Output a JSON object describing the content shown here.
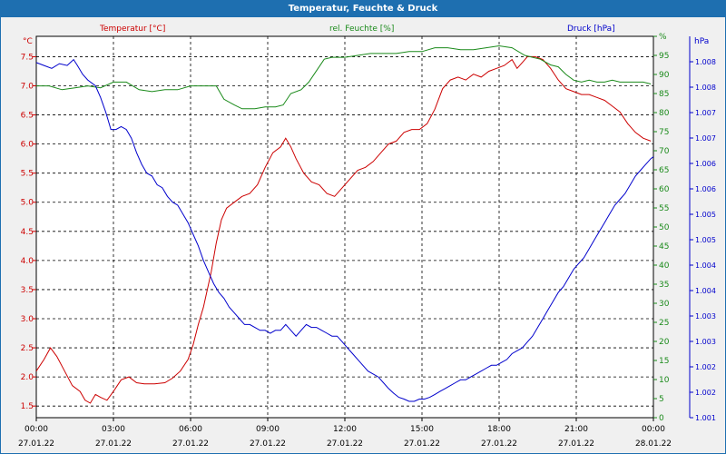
{
  "window_title": "Temperatur, Feuchte & Druck",
  "colors": {
    "temperature": "#cc0000",
    "humidity": "#1a8a1a",
    "pressure": "#0000cc",
    "title_bar": "#1e6fb0"
  },
  "chart_data": {
    "type": "line",
    "title": "Temperatur, Feuchte & Druck",
    "grid": true,
    "x_ticks": [
      {
        "time": "00:00",
        "date": "27.01.22"
      },
      {
        "time": "03:00",
        "date": "27.01.22"
      },
      {
        "time": "06:00",
        "date": "27.01.22"
      },
      {
        "time": "09:00",
        "date": "27.01.22"
      },
      {
        "time": "12:00",
        "date": "27.01.22"
      },
      {
        "time": "15:00",
        "date": "27.01.22"
      },
      {
        "time": "18:00",
        "date": "27.01.22"
      },
      {
        "time": "21:00",
        "date": "27.01.22"
      },
      {
        "time": "00:00",
        "date": "28.01.22"
      }
    ],
    "x_range_hours": [
      0,
      24
    ],
    "axes": {
      "temperature": {
        "unit_label": "°C",
        "series_label": "Temperatur [°C]",
        "range": [
          1.3,
          7.85
        ],
        "ticks": [
          "1.5",
          "2.0",
          "2.5",
          "3.0",
          "3.5",
          "4.0",
          "4.5",
          "5.0",
          "5.5",
          "6.0",
          "6.5",
          "7.0",
          "7.5"
        ]
      },
      "humidity": {
        "unit_label": "%",
        "series_label": "rel. Feuchte [%]",
        "range": [
          0,
          100
        ],
        "ticks": [
          "0",
          "5",
          "10",
          "15",
          "20",
          "25",
          "30",
          "35",
          "40",
          "45",
          "50",
          "55",
          "60",
          "65",
          "70",
          "75",
          "80",
          "85",
          "90",
          "95",
          "%"
        ]
      },
      "pressure": {
        "unit_label": "hPa",
        "series_label": "Druck [hPa]",
        "ticks": [
          "1.001",
          "1.002",
          "1.002",
          "1.003",
          "1.003",
          "1.004",
          "1.004",
          "1.005",
          "1.005",
          "1.006",
          "1.006",
          "1.007",
          "1.007",
          "1.008",
          "1.008"
        ]
      }
    },
    "series": [
      {
        "name": "Temperatur [°C]",
        "axis": "temperature",
        "points": [
          [
            0,
            2.1
          ],
          [
            0.3,
            2.3
          ],
          [
            0.55,
            2.5
          ],
          [
            0.8,
            2.35
          ],
          [
            1.1,
            2.1
          ],
          [
            1.4,
            1.85
          ],
          [
            1.7,
            1.75
          ],
          [
            1.9,
            1.6
          ],
          [
            2.1,
            1.55
          ],
          [
            2.3,
            1.7
          ],
          [
            2.5,
            1.65
          ],
          [
            2.75,
            1.6
          ],
          [
            3.0,
            1.75
          ],
          [
            3.3,
            1.95
          ],
          [
            3.6,
            2.0
          ],
          [
            3.9,
            1.9
          ],
          [
            4.2,
            1.88
          ],
          [
            4.6,
            1.88
          ],
          [
            5.0,
            1.9
          ],
          [
            5.3,
            1.98
          ],
          [
            5.6,
            2.1
          ],
          [
            5.9,
            2.3
          ],
          [
            6.1,
            2.55
          ],
          [
            6.3,
            2.9
          ],
          [
            6.5,
            3.2
          ],
          [
            6.8,
            3.8
          ],
          [
            7.0,
            4.3
          ],
          [
            7.2,
            4.7
          ],
          [
            7.4,
            4.9
          ],
          [
            7.7,
            5.0
          ],
          [
            8.0,
            5.1
          ],
          [
            8.3,
            5.15
          ],
          [
            8.6,
            5.3
          ],
          [
            8.9,
            5.6
          ],
          [
            9.2,
            5.85
          ],
          [
            9.5,
            5.95
          ],
          [
            9.7,
            6.1
          ],
          [
            9.9,
            5.95
          ],
          [
            10.1,
            5.75
          ],
          [
            10.4,
            5.5
          ],
          [
            10.7,
            5.35
          ],
          [
            11.0,
            5.3
          ],
          [
            11.3,
            5.15
          ],
          [
            11.6,
            5.1
          ],
          [
            11.9,
            5.25
          ],
          [
            12.2,
            5.4
          ],
          [
            12.5,
            5.55
          ],
          [
            12.8,
            5.6
          ],
          [
            13.1,
            5.7
          ],
          [
            13.4,
            5.85
          ],
          [
            13.7,
            6.0
          ],
          [
            14.0,
            6.05
          ],
          [
            14.3,
            6.2
          ],
          [
            14.6,
            6.25
          ],
          [
            14.9,
            6.25
          ],
          [
            15.2,
            6.35
          ],
          [
            15.5,
            6.6
          ],
          [
            15.8,
            6.95
          ],
          [
            16.1,
            7.1
          ],
          [
            16.4,
            7.15
          ],
          [
            16.7,
            7.1
          ],
          [
            17.0,
            7.2
          ],
          [
            17.3,
            7.15
          ],
          [
            17.6,
            7.25
          ],
          [
            17.9,
            7.3
          ],
          [
            18.2,
            7.35
          ],
          [
            18.5,
            7.45
          ],
          [
            18.7,
            7.3
          ],
          [
            18.9,
            7.4
          ],
          [
            19.1,
            7.5
          ],
          [
            19.4,
            7.5
          ],
          [
            19.7,
            7.45
          ],
          [
            20.0,
            7.3
          ],
          [
            20.3,
            7.1
          ],
          [
            20.6,
            6.95
          ],
          [
            20.9,
            6.9
          ],
          [
            21.2,
            6.85
          ],
          [
            21.5,
            6.85
          ],
          [
            21.8,
            6.8
          ],
          [
            22.1,
            6.75
          ],
          [
            22.4,
            6.65
          ],
          [
            22.7,
            6.55
          ],
          [
            23.0,
            6.35
          ],
          [
            23.3,
            6.2
          ],
          [
            23.6,
            6.1
          ],
          [
            23.9,
            6.05
          ]
        ]
      },
      {
        "name": "rel. Feuchte [%]",
        "axis": "humidity",
        "points": [
          [
            0,
            87
          ],
          [
            0.5,
            87
          ],
          [
            1.0,
            86
          ],
          [
            1.5,
            86.5
          ],
          [
            2.0,
            87
          ],
          [
            2.5,
            86.5
          ],
          [
            3.0,
            88
          ],
          [
            3.5,
            88
          ],
          [
            4.0,
            86
          ],
          [
            4.5,
            85.5
          ],
          [
            5.0,
            86
          ],
          [
            5.5,
            86
          ],
          [
            6.0,
            87
          ],
          [
            6.5,
            87
          ],
          [
            7.0,
            87
          ],
          [
            7.3,
            83.5
          ],
          [
            7.7,
            82
          ],
          [
            8.0,
            81
          ],
          [
            8.5,
            81
          ],
          [
            8.9,
            81.5
          ],
          [
            9.3,
            81.5
          ],
          [
            9.6,
            82
          ],
          [
            9.9,
            85
          ],
          [
            10.3,
            86
          ],
          [
            10.6,
            88
          ],
          [
            10.9,
            91
          ],
          [
            11.2,
            94
          ],
          [
            11.5,
            94.5
          ],
          [
            12.0,
            94.5
          ],
          [
            12.5,
            95
          ],
          [
            13.0,
            95.5
          ],
          [
            13.5,
            95.5
          ],
          [
            14.0,
            95.5
          ],
          [
            14.5,
            96
          ],
          [
            15.0,
            96
          ],
          [
            15.5,
            97
          ],
          [
            16.0,
            97
          ],
          [
            16.5,
            96.5
          ],
          [
            17.0,
            96.5
          ],
          [
            17.5,
            97
          ],
          [
            18.0,
            97.5
          ],
          [
            18.5,
            97
          ],
          [
            19.0,
            95
          ],
          [
            19.3,
            94.5
          ],
          [
            19.6,
            94
          ],
          [
            20.0,
            92.5
          ],
          [
            20.3,
            92
          ],
          [
            20.6,
            90
          ],
          [
            20.9,
            88.5
          ],
          [
            21.2,
            88
          ],
          [
            21.5,
            88.5
          ],
          [
            21.8,
            88
          ],
          [
            22.1,
            88
          ],
          [
            22.4,
            88.5
          ],
          [
            22.7,
            88
          ],
          [
            23.0,
            88
          ],
          [
            23.3,
            88
          ],
          [
            23.6,
            88
          ],
          [
            23.9,
            87.5
          ]
        ]
      },
      {
        "name": "Druck [hPa]",
        "axis": "pressure",
        "points_left_scale": [
          [
            0,
            7.4
          ],
          [
            0.3,
            7.35
          ],
          [
            0.6,
            7.3
          ],
          [
            0.9,
            7.38
          ],
          [
            1.2,
            7.35
          ],
          [
            1.45,
            7.45
          ],
          [
            1.6,
            7.35
          ],
          [
            1.8,
            7.2
          ],
          [
            2.0,
            7.1
          ],
          [
            2.3,
            7.0
          ],
          [
            2.5,
            6.8
          ],
          [
            2.7,
            6.55
          ],
          [
            2.9,
            6.25
          ],
          [
            3.1,
            6.25
          ],
          [
            3.3,
            6.3
          ],
          [
            3.5,
            6.25
          ],
          [
            3.7,
            6.1
          ],
          [
            3.9,
            5.85
          ],
          [
            4.1,
            5.65
          ],
          [
            4.3,
            5.5
          ],
          [
            4.5,
            5.45
          ],
          [
            4.7,
            5.3
          ],
          [
            4.9,
            5.25
          ],
          [
            5.1,
            5.1
          ],
          [
            5.3,
            5.0
          ],
          [
            5.5,
            4.95
          ],
          [
            5.7,
            4.8
          ],
          [
            5.9,
            4.65
          ],
          [
            6.1,
            4.45
          ],
          [
            6.3,
            4.25
          ],
          [
            6.5,
            4.0
          ],
          [
            6.7,
            3.8
          ],
          [
            6.9,
            3.6
          ],
          [
            7.1,
            3.45
          ],
          [
            7.3,
            3.35
          ],
          [
            7.5,
            3.2
          ],
          [
            7.7,
            3.1
          ],
          [
            7.9,
            3.0
          ],
          [
            8.1,
            2.9
          ],
          [
            8.3,
            2.9
          ],
          [
            8.5,
            2.85
          ],
          [
            8.7,
            2.8
          ],
          [
            8.9,
            2.8
          ],
          [
            9.1,
            2.75
          ],
          [
            9.3,
            2.8
          ],
          [
            9.5,
            2.8
          ],
          [
            9.7,
            2.9
          ],
          [
            9.9,
            2.8
          ],
          [
            10.1,
            2.7
          ],
          [
            10.3,
            2.8
          ],
          [
            10.5,
            2.9
          ],
          [
            10.7,
            2.85
          ],
          [
            10.9,
            2.85
          ],
          [
            11.1,
            2.8
          ],
          [
            11.3,
            2.75
          ],
          [
            11.5,
            2.7
          ],
          [
            11.7,
            2.7
          ],
          [
            11.9,
            2.6
          ],
          [
            12.1,
            2.5
          ],
          [
            12.3,
            2.4
          ],
          [
            12.5,
            2.3
          ],
          [
            12.7,
            2.2
          ],
          [
            12.9,
            2.1
          ],
          [
            13.1,
            2.05
          ],
          [
            13.3,
            2.0
          ],
          [
            13.5,
            1.9
          ],
          [
            13.7,
            1.8
          ],
          [
            13.9,
            1.72
          ],
          [
            14.1,
            1.65
          ],
          [
            14.3,
            1.62
          ],
          [
            14.5,
            1.58
          ],
          [
            14.7,
            1.58
          ],
          [
            14.9,
            1.62
          ],
          [
            15.1,
            1.62
          ],
          [
            15.3,
            1.65
          ],
          [
            15.5,
            1.7
          ],
          [
            15.7,
            1.75
          ],
          [
            15.9,
            1.8
          ],
          [
            16.1,
            1.85
          ],
          [
            16.3,
            1.9
          ],
          [
            16.5,
            1.95
          ],
          [
            16.7,
            1.95
          ],
          [
            16.9,
            2.0
          ],
          [
            17.1,
            2.05
          ],
          [
            17.3,
            2.1
          ],
          [
            17.5,
            2.15
          ],
          [
            17.7,
            2.2
          ],
          [
            17.9,
            2.2
          ],
          [
            18.1,
            2.25
          ],
          [
            18.3,
            2.3
          ],
          [
            18.5,
            2.4
          ],
          [
            18.7,
            2.45
          ],
          [
            18.9,
            2.5
          ],
          [
            19.1,
            2.6
          ],
          [
            19.3,
            2.7
          ],
          [
            19.5,
            2.85
          ],
          [
            19.7,
            3.0
          ],
          [
            19.9,
            3.15
          ],
          [
            20.1,
            3.3
          ],
          [
            20.3,
            3.45
          ],
          [
            20.5,
            3.55
          ],
          [
            20.7,
            3.7
          ],
          [
            20.9,
            3.85
          ],
          [
            21.1,
            3.95
          ],
          [
            21.3,
            4.05
          ],
          [
            21.5,
            4.2
          ],
          [
            21.7,
            4.35
          ],
          [
            21.9,
            4.5
          ],
          [
            22.1,
            4.65
          ],
          [
            22.3,
            4.8
          ],
          [
            22.5,
            4.95
          ],
          [
            22.7,
            5.05
          ],
          [
            22.9,
            5.15
          ],
          [
            23.1,
            5.3
          ],
          [
            23.3,
            5.45
          ],
          [
            23.5,
            5.55
          ],
          [
            23.7,
            5.65
          ],
          [
            23.9,
            5.75
          ],
          [
            24.0,
            5.78
          ]
        ]
      }
    ]
  }
}
